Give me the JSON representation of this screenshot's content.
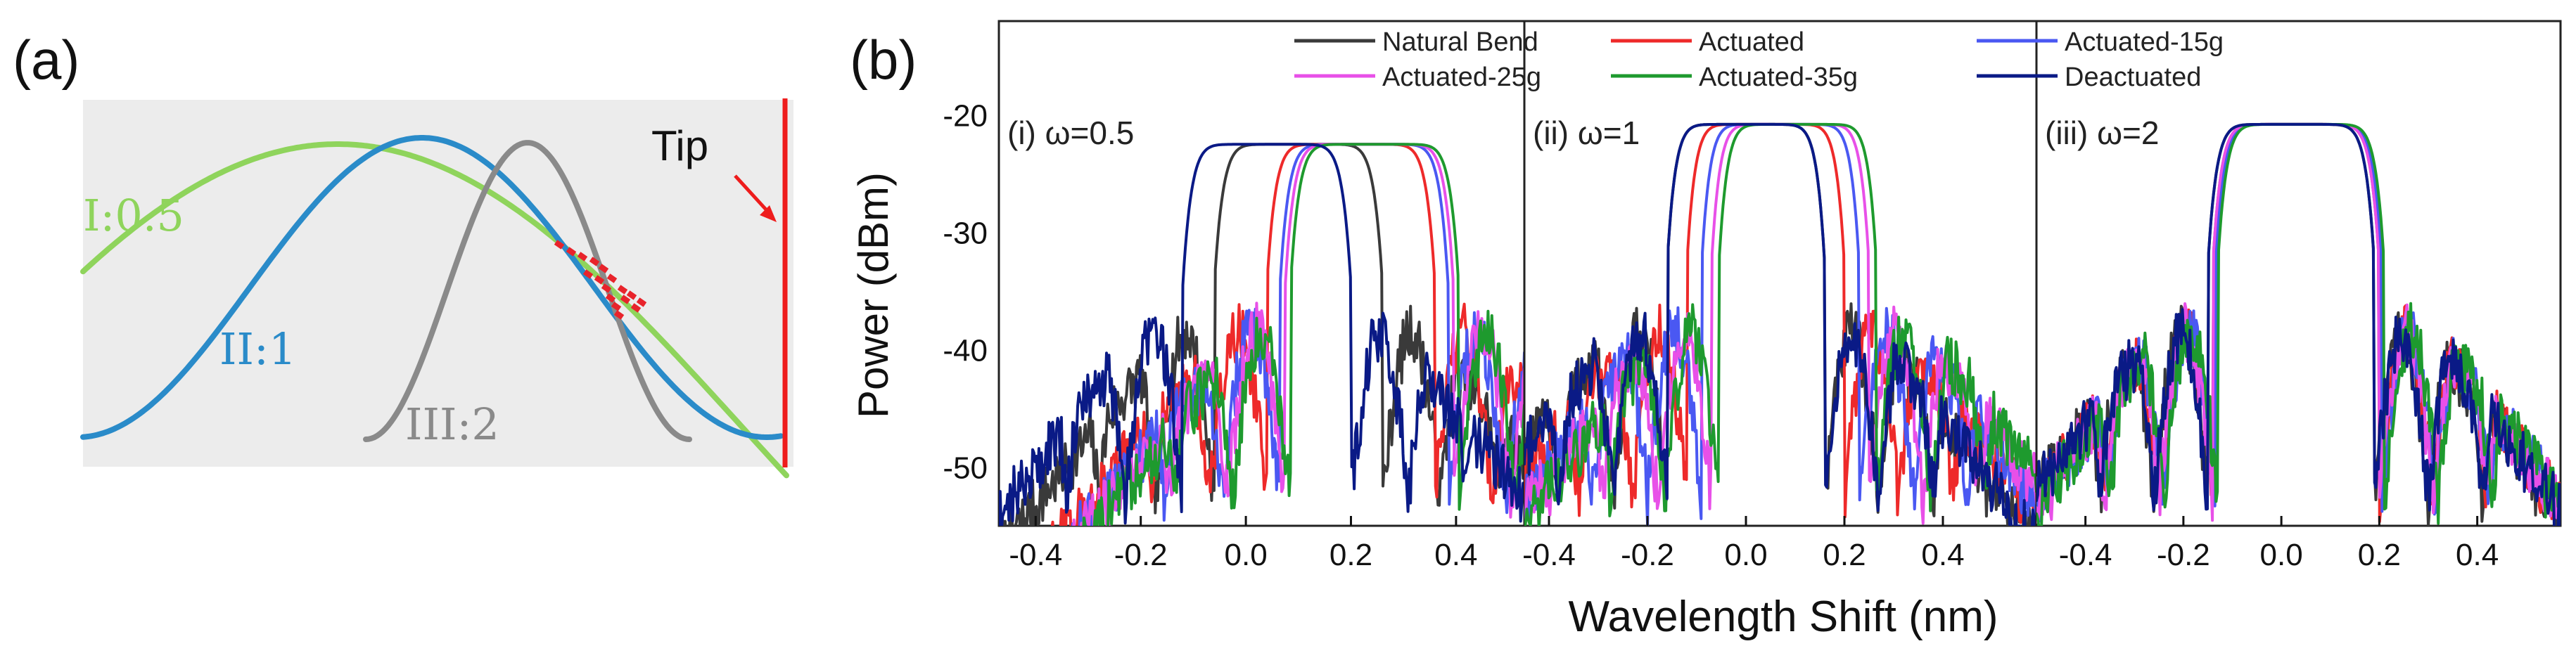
{
  "panel_a": {
    "label": "(a)",
    "tip_label": "Tip",
    "curve_labels": [
      "I:0.5",
      "II:1",
      "III:2"
    ],
    "colors": {
      "I": "#8fd45c",
      "II": "#2a8bc9",
      "III": "#8a8a8a",
      "tip": "#ee1c1c",
      "cross": "#e8232b",
      "bg": "#ececec"
    }
  },
  "panel_b": {
    "label": "(b)",
    "colors": {
      "Natural Bend": "#3a3a3a",
      "Actuated": "#ee2a2a",
      "Actuated-15g": "#4a58f2",
      "Actuated-25g": "#e850e8",
      "Actuated-35g": "#1e9a2e",
      "Deactuated": "#0a1a86"
    }
  },
  "chart_data": {
    "type": "line",
    "xlabel": "Wavelength Shift (nm)",
    "ylabel": "Power (dBm)",
    "ylim": [
      -55,
      -12
    ],
    "yticks": [
      -20,
      -30,
      -40,
      -50
    ],
    "xticks": [
      -0.4,
      -0.2,
      0.0,
      0.2,
      0.4
    ],
    "xtick_labels": [
      "-0.4",
      "-0.2",
      "0.0",
      "0.2",
      "0.4"
    ],
    "legend": [
      "Natural Bend",
      "Actuated",
      "Actuated-15g",
      "Actuated-25g",
      "Actuated-35g",
      "Deactuated"
    ],
    "legend_position": "top",
    "subplots": [
      {
        "label": "(i) ω=0.5",
        "xlim": [
          -0.47,
          0.53
        ],
        "series": [
          {
            "name": "Natural Bend",
            "center": 0.1,
            "half_width": 0.16,
            "peak": -22.5
          },
          {
            "name": "Actuated",
            "center": 0.2,
            "half_width": 0.16,
            "peak": -22.5
          },
          {
            "name": "Actuated-15g",
            "center": 0.225,
            "half_width": 0.16,
            "peak": -22.5
          },
          {
            "name": "Actuated-25g",
            "center": 0.235,
            "half_width": 0.16,
            "peak": -22.5
          },
          {
            "name": "Actuated-35g",
            "center": 0.245,
            "half_width": 0.16,
            "peak": -22.5
          },
          {
            "name": "Deactuated",
            "center": 0.04,
            "half_width": 0.16,
            "peak": -22.5
          }
        ]
      },
      {
        "label": "(ii) ω=1",
        "xlim": [
          -0.45,
          0.59
        ],
        "series": [
          {
            "name": "Natural Bend",
            "center": 0.0,
            "half_width": 0.16,
            "peak": -20.8
          },
          {
            "name": "Actuated",
            "center": 0.04,
            "half_width": 0.16,
            "peak": -20.8
          },
          {
            "name": "Actuated-15g",
            "center": 0.07,
            "half_width": 0.16,
            "peak": -20.8
          },
          {
            "name": "Actuated-25g",
            "center": 0.09,
            "half_width": 0.16,
            "peak": -20.8
          },
          {
            "name": "Actuated-35g",
            "center": 0.105,
            "half_width": 0.16,
            "peak": -20.8
          },
          {
            "name": "Deactuated",
            "center": 0.0,
            "half_width": 0.16,
            "peak": -20.8
          }
        ]
      },
      {
        "label": "(iii) ω=2",
        "xlim": [
          -0.5,
          0.57
        ],
        "series": [
          {
            "name": "Natural Bend",
            "center": 0.02,
            "half_width": 0.17,
            "peak": -20.8
          },
          {
            "name": "Actuated",
            "center": 0.03,
            "half_width": 0.17,
            "peak": -20.8
          },
          {
            "name": "Actuated-15g",
            "center": 0.035,
            "half_width": 0.17,
            "peak": -20.8
          },
          {
            "name": "Actuated-25g",
            "center": 0.03,
            "half_width": 0.17,
            "peak": -20.8
          },
          {
            "name": "Actuated-35g",
            "center": 0.04,
            "half_width": 0.17,
            "peak": -20.8
          },
          {
            "name": "Deactuated",
            "center": 0.02,
            "half_width": 0.17,
            "peak": -20.8
          }
        ]
      }
    ]
  }
}
